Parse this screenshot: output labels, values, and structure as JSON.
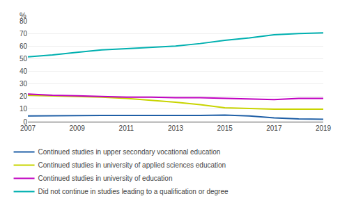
{
  "chart_data": {
    "type": "line",
    "x": [
      2007,
      2008,
      2009,
      2010,
      2011,
      2012,
      2013,
      2014,
      2015,
      2016,
      2017,
      2018,
      2019
    ],
    "series": [
      {
        "name": "Continued studies in upper secondary vocational education",
        "color": "#1f5fa6",
        "values": [
          4.5,
          4.8,
          4.9,
          5.0,
          5.0,
          4.9,
          5.0,
          5.0,
          5.2,
          4.5,
          3.0,
          2.2,
          2.0
        ]
      },
      {
        "name": "Continued studies in university of applied sciences education",
        "color": "#c8d400",
        "values": [
          21.0,
          20.5,
          20.0,
          19.5,
          18.5,
          17.0,
          15.5,
          13.5,
          11.0,
          10.5,
          10.0,
          10.0,
          10.0
        ]
      },
      {
        "name": "Continued studies in university of education",
        "color": "#c000c0",
        "values": [
          22.0,
          21.0,
          20.5,
          20.0,
          19.5,
          19.5,
          19.0,
          19.0,
          18.5,
          18.0,
          17.5,
          18.5,
          18.5
        ]
      },
      {
        "name": "Did not continue in studies leading to a qualification or degree",
        "color": "#00b0b0",
        "values": [
          51.5,
          53.0,
          55.0,
          57.0,
          58.0,
          59.0,
          60.0,
          62.0,
          64.5,
          66.5,
          69.0,
          70.0,
          70.5
        ]
      }
    ],
    "annotations": [
      "%"
    ],
    "xlim": [
      2007,
      2019
    ],
    "xticks": [
      2007,
      2009,
      2011,
      2013,
      2015,
      2017,
      2019
    ],
    "ylim": [
      0,
      80
    ],
    "yticks": [
      0,
      10,
      20,
      30,
      40,
      50,
      60,
      70,
      80
    ],
    "grid": "y",
    "legend": "bottom left"
  }
}
